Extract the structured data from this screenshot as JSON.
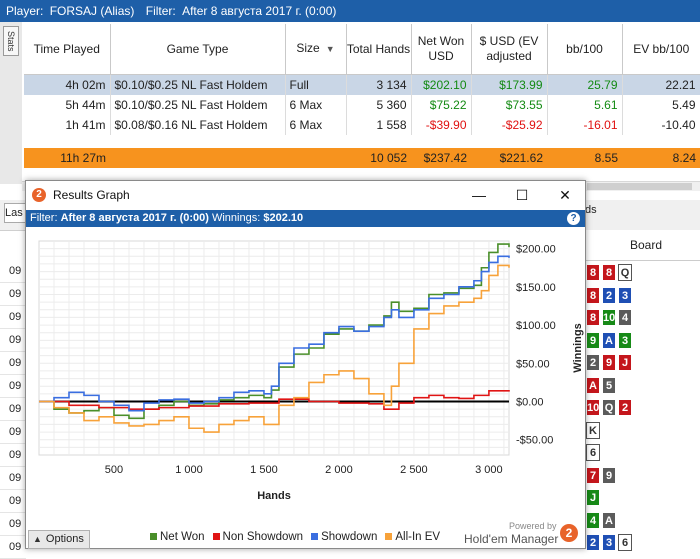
{
  "topbar": {
    "player_label": "Player:",
    "player_value": "FORSAJ (Alias)",
    "filter_label": "Filter:",
    "filter_value": "After 8 августа 2017 г. (0:00)"
  },
  "side_tab": "Stats",
  "stats_table": {
    "columns": [
      "Time Played",
      "Game Type",
      "Size",
      "Total Hands",
      "Net Won USD",
      "$ USD (EV adjusted",
      "bb/100",
      "EV bb/100"
    ],
    "rows": [
      {
        "time": "4h 02m",
        "game": "$0.10/$0.25 NL Fast Holdem",
        "size": "Full",
        "hands": "3 134",
        "net": "$202.10",
        "ev": "$173.99",
        "bb": "25.79",
        "evbb": "22.21"
      },
      {
        "time": "5h 44m",
        "game": "$0.10/$0.25 NL Fast Holdem",
        "size": "6 Max",
        "hands": "5 360",
        "net": "$75.22",
        "ev": "$73.55",
        "bb": "5.61",
        "evbb": "5.49"
      },
      {
        "time": "1h 41m",
        "game": "$0.08/$0.16 NL Fast Holdem",
        "size": "6 Max",
        "hands": "1 558",
        "net": "-$39.90",
        "ev": "-$25.92",
        "bb": "-16.01",
        "evbb": "-10.40"
      }
    ],
    "total": {
      "time": "11h 27m",
      "hands": "10 052",
      "net": "$237.42",
      "ev": "$221.62",
      "bb": "8.55",
      "evbb": "8.24"
    }
  },
  "background": {
    "left_tab_text": "Las",
    "right_fragment": "ds",
    "board_header": "Board",
    "row_prefix": [
      "09",
      "09",
      "09",
      "09",
      "09",
      "09",
      "09",
      "09",
      "09",
      "09",
      "09",
      "09",
      "09"
    ],
    "board_rows": [
      [
        {
          "v": "8",
          "c": "red"
        },
        {
          "v": "8",
          "c": "red"
        },
        {
          "v": "Q",
          "c": "white"
        }
      ],
      [
        {
          "v": "8",
          "c": "red"
        },
        {
          "v": "2",
          "c": "blue"
        },
        {
          "v": "3",
          "c": "blue"
        }
      ],
      [
        {
          "v": "8",
          "c": "red"
        },
        {
          "v": "10",
          "c": "green"
        },
        {
          "v": "4",
          "c": "grey"
        }
      ],
      [
        {
          "v": "9",
          "c": "green"
        },
        {
          "v": "A",
          "c": "blue"
        },
        {
          "v": "3",
          "c": "green"
        }
      ],
      [
        {
          "v": "2",
          "c": "grey"
        },
        {
          "v": "9",
          "c": "red"
        },
        {
          "v": "J",
          "c": "red"
        }
      ],
      [
        {
          "v": "A",
          "c": "red"
        },
        {
          "v": "5",
          "c": "grey"
        }
      ],
      [
        {
          "v": "10",
          "c": "red"
        },
        {
          "v": "Q",
          "c": "grey"
        },
        {
          "v": "2",
          "c": "red"
        }
      ],
      [
        {
          "v": "K",
          "c": "white"
        }
      ],
      [
        {
          "v": "6",
          "c": "white"
        }
      ],
      [
        {
          "v": "7",
          "c": "red"
        },
        {
          "v": "9",
          "c": "grey"
        }
      ],
      [
        {
          "v": "J",
          "c": "green"
        }
      ],
      [
        {
          "v": "4",
          "c": "green"
        },
        {
          "v": "A",
          "c": "grey"
        }
      ],
      [
        {
          "v": "2",
          "c": "blue"
        },
        {
          "v": "3",
          "c": "blue"
        },
        {
          "v": "6",
          "c": "white"
        }
      ]
    ]
  },
  "dialog": {
    "icon_text": "2",
    "title": "Results Graph",
    "minimize": "—",
    "maximize": "☐",
    "close": "✕",
    "filter_label": "Filter:",
    "filter_value": "After 8 августа 2017 г. (0:00)",
    "winnings_label": "Winnings:",
    "winnings_value": "$202.10",
    "help": "?",
    "options_label": "Options",
    "options_arrow": "▲",
    "powered_by": "Powered by",
    "brand_name": "Hold'em Manager",
    "brand_logo": "2",
    "legend": [
      {
        "name": "Net Won",
        "color": "#4a8f2a"
      },
      {
        "name": "Non Showdown",
        "color": "#e01414"
      },
      {
        "name": "Showdown",
        "color": "#3a6ee0"
      },
      {
        "name": "All-In EV",
        "color": "#f7a23a"
      }
    ]
  },
  "chart_data": {
    "type": "line",
    "title": "",
    "xlabel": "Hands",
    "ylabel": "Winnings",
    "xlim": [
      0,
      3134
    ],
    "ylim": [
      -70,
      210
    ],
    "x_ticks": [
      500,
      1000,
      1500,
      2000,
      2500,
      3000
    ],
    "x_tick_labels": [
      "500",
      "1 000",
      "1 500",
      "2 000",
      "2 500",
      "3 000"
    ],
    "y_ticks": [
      200,
      150,
      100,
      50,
      0,
      -50
    ],
    "y_tick_labels": [
      "$200.00",
      "$150.00",
      "$100.00",
      "$50.00",
      "$0.00",
      "-$50.00"
    ],
    "grid": true,
    "legend_position": "bottom",
    "series": [
      {
        "name": "Net Won",
        "color": "#4a8f2a",
        "x": [
          0,
          100,
          200,
          300,
          400,
          500,
          600,
          700,
          800,
          900,
          1000,
          1100,
          1200,
          1300,
          1400,
          1500,
          1550,
          1600,
          1700,
          1800,
          1900,
          2000,
          2100,
          2200,
          2300,
          2350,
          2400,
          2500,
          2600,
          2700,
          2800,
          2900,
          2950,
          3000,
          3060,
          3134
        ],
        "y": [
          0,
          -10,
          -15,
          -12,
          -8,
          -18,
          -22,
          -10,
          -5,
          0,
          -5,
          -3,
          2,
          5,
          8,
          5,
          15,
          45,
          62,
          70,
          88,
          95,
          92,
          100,
          112,
          130,
          118,
          122,
          140,
          142,
          148,
          152,
          175,
          195,
          206,
          202
        ]
      },
      {
        "name": "Non Showdown",
        "color": "#e01414",
        "x": [
          0,
          200,
          400,
          600,
          800,
          1000,
          1200,
          1400,
          1600,
          1800,
          2000,
          2200,
          2300,
          2400,
          2500,
          2600,
          2700,
          2800,
          2900,
          3000,
          3134
        ],
        "y": [
          0,
          -5,
          -8,
          -10,
          -8,
          -6,
          -3,
          -2,
          3,
          0,
          -2,
          -3,
          -10,
          -2,
          5,
          8,
          5,
          4,
          8,
          14,
          13
        ]
      },
      {
        "name": "Showdown",
        "color": "#3a6ee0",
        "x": [
          0,
          100,
          200,
          300,
          400,
          500,
          600,
          700,
          800,
          900,
          1000,
          1100,
          1200,
          1300,
          1400,
          1500,
          1550,
          1600,
          1700,
          1800,
          1900,
          2000,
          2100,
          2200,
          2300,
          2350,
          2400,
          2500,
          2600,
          2700,
          2800,
          2900,
          2950,
          3000,
          3060,
          3134
        ],
        "y": [
          0,
          5,
          12,
          8,
          0,
          -5,
          -12,
          -2,
          2,
          3,
          -2,
          0,
          5,
          12,
          14,
          10,
          20,
          50,
          70,
          75,
          90,
          98,
          92,
          98,
          110,
          120,
          110,
          120,
          135,
          140,
          150,
          158,
          170,
          182,
          190,
          188
        ]
      },
      {
        "name": "All-In EV",
        "color": "#f7a23a",
        "x": [
          0,
          100,
          200,
          300,
          400,
          500,
          600,
          700,
          800,
          900,
          1000,
          1100,
          1200,
          1300,
          1400,
          1500,
          1600,
          1700,
          1800,
          1900,
          2000,
          2100,
          2200,
          2300,
          2350,
          2400,
          2500,
          2600,
          2700,
          2800,
          2900,
          2950,
          3000,
          3060,
          3134
        ],
        "y": [
          0,
          -8,
          -15,
          -25,
          -20,
          -28,
          -32,
          -30,
          -25,
          -20,
          -35,
          -40,
          -30,
          -25,
          -20,
          -30,
          -5,
          5,
          25,
          35,
          40,
          30,
          10,
          -5,
          20,
          50,
          95,
          115,
          125,
          130,
          135,
          145,
          165,
          178,
          175
        ]
      }
    ]
  }
}
